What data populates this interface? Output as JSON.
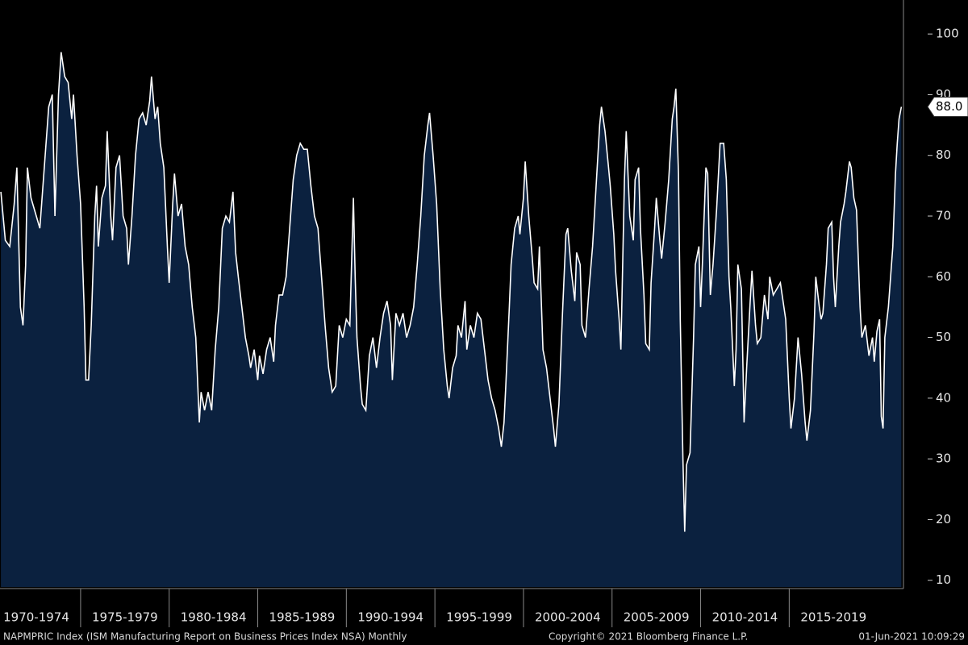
{
  "chart_data": {
    "type": "area",
    "x": [
      1970.5,
      1970.75,
      1971.0,
      1971.25,
      1971.4,
      1971.6,
      1971.75,
      1971.9,
      1972.0,
      1972.2,
      1972.5,
      1972.7,
      1972.8,
      1973.0,
      1973.2,
      1973.4,
      1973.55,
      1973.75,
      1973.9,
      1974.1,
      1974.3,
      1974.5,
      1974.6,
      1974.8,
      1975.0,
      1975.2,
      1975.3,
      1975.45,
      1975.6,
      1975.8,
      1975.9,
      1976.0,
      1976.2,
      1976.4,
      1976.5,
      1976.7,
      1976.8,
      1977.0,
      1977.2,
      1977.4,
      1977.6,
      1977.7,
      1977.9,
      1978.1,
      1978.3,
      1978.5,
      1978.7,
      1978.9,
      1979.0,
      1979.2,
      1979.35,
      1979.5,
      1979.7,
      1979.9,
      1980.0,
      1980.2,
      1980.3,
      1980.5,
      1980.7,
      1980.9,
      1981.1,
      1981.3,
      1981.5,
      1981.7,
      1981.8,
      1982.0,
      1982.2,
      1982.4,
      1982.6,
      1982.8,
      1983.0,
      1983.2,
      1983.4,
      1983.6,
      1983.75,
      1983.9,
      1984.1,
      1984.3,
      1984.5,
      1984.6,
      1984.8,
      1985.0,
      1985.1,
      1985.3,
      1985.5,
      1985.7,
      1985.9,
      1986.0,
      1986.2,
      1986.4,
      1986.6,
      1986.8,
      1987.0,
      1987.2,
      1987.4,
      1987.6,
      1987.8,
      1988.0,
      1988.2,
      1988.4,
      1988.6,
      1988.8,
      1989.0,
      1989.2,
      1989.4,
      1989.6,
      1989.8,
      1990.0,
      1990.2,
      1990.4,
      1990.5,
      1990.6,
      1990.8,
      1990.9,
      1991.1,
      1991.3,
      1991.5,
      1991.7,
      1991.9,
      1992.1,
      1992.3,
      1992.5,
      1992.6,
      1992.8,
      1993.0,
      1993.2,
      1993.4,
      1993.6,
      1993.8,
      1994.0,
      1994.2,
      1994.4,
      1994.6,
      1994.7,
      1994.9,
      1995.1,
      1995.3,
      1995.5,
      1995.7,
      1995.8,
      1996.0,
      1996.2,
      1996.3,
      1996.5,
      1996.7,
      1996.8,
      1997.0,
      1997.2,
      1997.4,
      1997.6,
      1997.8,
      1998.0,
      1998.2,
      1998.4,
      1998.6,
      1998.75,
      1998.9,
      1999.0,
      1999.2,
      1999.3,
      1999.5,
      1999.7,
      1999.8,
      2000.0,
      2000.1,
      2000.3,
      2000.5,
      2000.6,
      2000.8,
      2000.9,
      2001.1,
      2001.3,
      2001.5,
      2001.7,
      2001.8,
      2002.0,
      2002.2,
      2002.4,
      2002.5,
      2002.7,
      2002.9,
      2003.0,
      2003.2,
      2003.3,
      2003.5,
      2003.7,
      2003.9,
      2004.1,
      2004.3,
      2004.4,
      2004.6,
      2004.8,
      2004.9,
      2005.1,
      2005.2,
      2005.4,
      2005.5,
      2005.7,
      2005.8,
      2006.0,
      2006.2,
      2006.3,
      2006.5,
      2006.6,
      2006.8,
      2006.9,
      2007.1,
      2007.2,
      2007.4,
      2007.5,
      2007.7,
      2007.8,
      2008.0,
      2008.2,
      2008.4,
      2008.5,
      2008.6,
      2008.75,
      2008.85,
      2009.0,
      2009.1,
      2009.2,
      2009.4,
      2009.6,
      2009.7,
      2009.9,
      2010.0,
      2010.1,
      2010.3,
      2010.4,
      2010.55,
      2010.7,
      2010.9,
      2011.1,
      2011.3,
      2011.45,
      2011.6,
      2011.7,
      2011.9,
      2012.0,
      2012.1,
      2012.3,
      2012.45,
      2012.6,
      2012.8,
      2012.9,
      2013.1,
      2013.2,
      2013.4,
      2013.6,
      2013.8,
      2013.9,
      2014.1,
      2014.3,
      2014.5,
      2014.6,
      2014.8,
      2015.0,
      2015.1,
      2015.3,
      2015.5,
      2015.7,
      2015.9,
      2016.0,
      2016.2,
      2016.4,
      2016.5,
      2016.7,
      2016.8,
      2016.9,
      2017.1,
      2017.2,
      2017.4,
      2017.5,
      2017.6,
      2017.8,
      2017.9,
      2018.1,
      2018.2,
      2018.4,
      2018.5,
      2018.65,
      2018.8,
      2019.0,
      2019.1,
      2019.3,
      2019.5,
      2019.7,
      2019.8,
      2019.95,
      2020.1,
      2020.2,
      2020.3,
      2020.4,
      2020.6,
      2020.7,
      2020.85,
      2021.0,
      2021.1,
      2021.2,
      2021.33
    ],
    "values": [
      74,
      66,
      65,
      72,
      78,
      55,
      52,
      62,
      78,
      73,
      70,
      68,
      72,
      80,
      88,
      90,
      70,
      90,
      97,
      93,
      92,
      86,
      90,
      80,
      72,
      55,
      43,
      43,
      52,
      70,
      75,
      65,
      73,
      75,
      84,
      70,
      66,
      78,
      80,
      70,
      68,
      62,
      70,
      80,
      86,
      87,
      85,
      89,
      93,
      86,
      88,
      82,
      78,
      65,
      59,
      72,
      77,
      70,
      72,
      65,
      62,
      55,
      50,
      36,
      41,
      38,
      41,
      38,
      48,
      55,
      68,
      70,
      69,
      74,
      64,
      60,
      55,
      50,
      47,
      45,
      48,
      43,
      47,
      44,
      48,
      50,
      46,
      52,
      57,
      57,
      60,
      68,
      76,
      80,
      82,
      81,
      81,
      75,
      70,
      68,
      60,
      52,
      45,
      41,
      42,
      52,
      50,
      53,
      52,
      73,
      60,
      50,
      42,
      39,
      38,
      47,
      50,
      45,
      50,
      54,
      56,
      52,
      43,
      54,
      52,
      54,
      50,
      52,
      55,
      62,
      70,
      80,
      85,
      87,
      80,
      72,
      58,
      48,
      42,
      40,
      45,
      47,
      52,
      50,
      56,
      48,
      52,
      50,
      54,
      53,
      48,
      43,
      40,
      38,
      35,
      32,
      36,
      42,
      55,
      62,
      68,
      70,
      67,
      73,
      79,
      70,
      63,
      59,
      58,
      65,
      48,
      45,
      40,
      35,
      32,
      39,
      54,
      67,
      68,
      61,
      56,
      64,
      62,
      52,
      50,
      58,
      65,
      75,
      85,
      88,
      84,
      78,
      75,
      67,
      61,
      53,
      48,
      76,
      84,
      70,
      66,
      76,
      78,
      68,
      57,
      49,
      48,
      59,
      68,
      73,
      66,
      63,
      69,
      76,
      86,
      88,
      91,
      77,
      53,
      30,
      18,
      29,
      31,
      50,
      62,
      65,
      55,
      62,
      78,
      77,
      57,
      62,
      71,
      82,
      82,
      76,
      60,
      55,
      42,
      48,
      62,
      58,
      36,
      45,
      56,
      61,
      52,
      49,
      50,
      57,
      53,
      60,
      57,
      58,
      59,
      57,
      53,
      40,
      35,
      40,
      50,
      44,
      36,
      33,
      38,
      51,
      60,
      55,
      53,
      54,
      62,
      68,
      69,
      60,
      55,
      65,
      69,
      72,
      74,
      79,
      78,
      73,
      71,
      55,
      50,
      52,
      47,
      50,
      46,
      51,
      53,
      37,
      35,
      50,
      55,
      59,
      65,
      77,
      82,
      86,
      88
    ],
    "xlim": [
      1970.45,
      2021.45
    ],
    "ylim": [
      8.9,
      105.6
    ],
    "yticks": [
      10,
      20,
      30,
      40,
      50,
      60,
      70,
      80,
      90,
      100
    ],
    "xticks": [
      {
        "value": 1972.5,
        "label": "1970-1974"
      },
      {
        "value": 1977.5,
        "label": "1975-1979"
      },
      {
        "value": 1982.5,
        "label": "1980-1984"
      },
      {
        "value": 1987.5,
        "label": "1985-1989"
      },
      {
        "value": 1992.5,
        "label": "1990-1994"
      },
      {
        "value": 1997.5,
        "label": "1995-1999"
      },
      {
        "value": 2002.5,
        "label": "2000-2004"
      },
      {
        "value": 2007.5,
        "label": "2005-2009"
      },
      {
        "value": 2012.5,
        "label": "2010-2014"
      },
      {
        "value": 2017.5,
        "label": "2015-2019"
      }
    ],
    "last_value": {
      "value": 88,
      "label": "88.0"
    },
    "color": "#ffffff",
    "fill": "#0b213f",
    "footer": {
      "left": "NAPMPRIC Index (ISM Manufacturing Report on Business Prices Index NSA)  Monthly",
      "center": "Copyright© 2021 Bloomberg Finance L.P.",
      "right": "01-Jun-2021 10:09:29"
    }
  }
}
